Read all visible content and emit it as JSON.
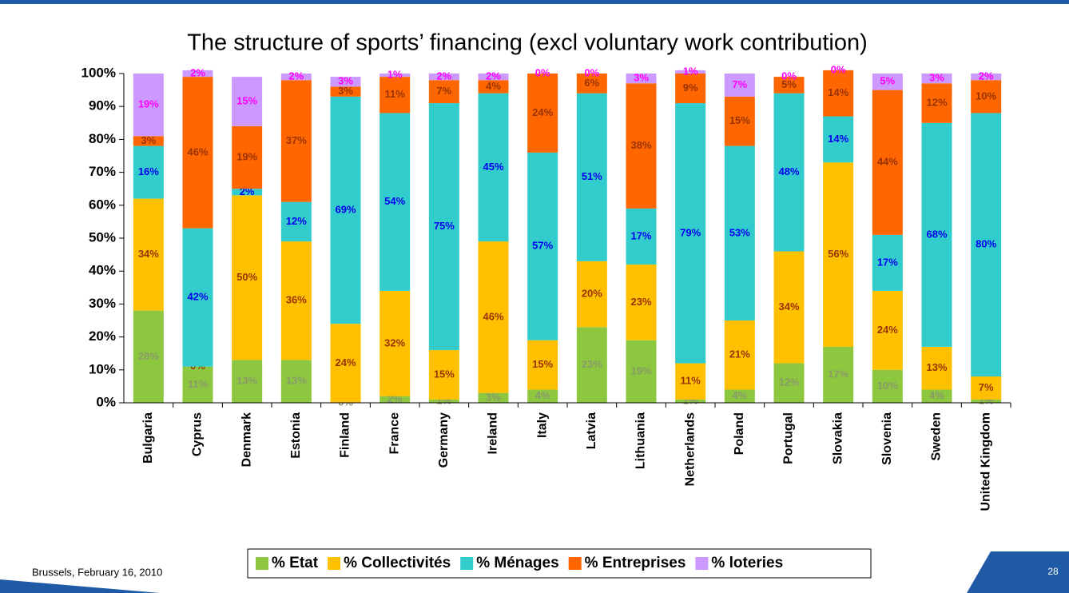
{
  "chart_data": {
    "type": "stacked_bar",
    "title": "The structure of sports’ financing (excl voluntary work contribution)",
    "categories": [
      "Bulgaria",
      "Cyprus",
      "Denmark",
      "Estonia",
      "Finland",
      "France",
      "Germany",
      "Ireland",
      "Italy",
      "Latvia",
      "Lithuania",
      "Netherlands",
      "Poland",
      "Portugal",
      "Slovakia",
      "Slovenia",
      "Sweden",
      "United Kingdom"
    ],
    "series": [
      {
        "name": "% Etat",
        "color": "#8dc63f",
        "label_color": "#8a9a6a",
        "values": [
          28,
          11,
          13,
          13,
          0,
          2,
          1,
          3,
          4,
          23,
          19,
          1,
          4,
          12,
          17,
          10,
          4,
          1
        ],
        "value_labels": [
          "28%",
          "11%",
          "13%",
          "13%",
          "0%",
          "2%",
          "1%",
          "3%",
          "4%",
          "23%",
          "19%",
          "1%",
          "4%",
          "12%",
          "17%",
          "10%",
          "4%",
          "1%"
        ]
      },
      {
        "name": "% Collectivités",
        "color": "#ffc000",
        "label_color": "#993300",
        "values": [
          34,
          0,
          50,
          36,
          24,
          32,
          15,
          46,
          15,
          20,
          23,
          11,
          21,
          34,
          56,
          24,
          13,
          7
        ],
        "value_labels": [
          "34%",
          "0%",
          "50%",
          "36%",
          "24%",
          "32%",
          "15%",
          "46%",
          "15%",
          "20%",
          "23%",
          "11%",
          "21%",
          "34%",
          "56%",
          "24%",
          "13%",
          "7%"
        ]
      },
      {
        "name": "% Ménages",
        "color": "#33cccc",
        "label_color": "#0000ee",
        "values": [
          16,
          42,
          2,
          12,
          69,
          54,
          75,
          45,
          57,
          51,
          17,
          79,
          53,
          48,
          14,
          17,
          68,
          80
        ],
        "value_labels": [
          "16%",
          "42%",
          "2%",
          "12%",
          "69%",
          "54%",
          "75%",
          "45%",
          "57%",
          "51%",
          "17%",
          "79%",
          "53%",
          "48%",
          "14%",
          "17%",
          "68%",
          "80%"
        ]
      },
      {
        "name": "% Entreprises",
        "color": "#ff6600",
        "label_color": "#993300",
        "values": [
          3,
          46,
          19,
          37,
          3,
          11,
          7,
          4,
          24,
          6,
          38,
          9,
          15,
          5,
          14,
          44,
          12,
          10
        ],
        "value_labels": [
          "3%",
          "46%",
          "19%",
          "37%",
          "3%",
          "11%",
          "7%",
          "4%",
          "24%",
          "6%",
          "38%",
          "9%",
          "15%",
          "5%",
          "14%",
          "44%",
          "12%",
          "10%"
        ]
      },
      {
        "name": "% loteries",
        "color": "#cc99ff",
        "label_color": "#ff00ff",
        "values": [
          19,
          2,
          15,
          2,
          3,
          1,
          2,
          2,
          0,
          0,
          3,
          1,
          7,
          0,
          0,
          5,
          3,
          2
        ],
        "value_labels": [
          "19%",
          "2%",
          "15%",
          "2%",
          "3%",
          "1%",
          "2%",
          "2%",
          "0%",
          "0%",
          "3%",
          "1%",
          "7%",
          "0%",
          "0%",
          "5%",
          "3%",
          "2%"
        ]
      }
    ],
    "ylim": [
      0,
      100
    ],
    "yticks": [
      {
        "value": 0,
        "label": "0%"
      },
      {
        "value": 10,
        "label": "10%"
      },
      {
        "value": 20,
        "label": "20%"
      },
      {
        "value": 30,
        "label": "30%"
      },
      {
        "value": 40,
        "label": "40%"
      },
      {
        "value": 50,
        "label": "50%"
      },
      {
        "value": 60,
        "label": "60%"
      },
      {
        "value": 70,
        "label": "70%"
      },
      {
        "value": 80,
        "label": "80%"
      },
      {
        "value": 90,
        "label": "90%"
      },
      {
        "value": 100,
        "label": "100%"
      }
    ],
    "legend": "bottom"
  },
  "footer": {
    "date": "Brussels, February 16, 2010",
    "page": 28
  }
}
